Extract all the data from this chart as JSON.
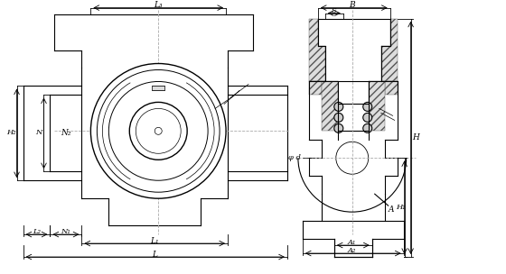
{
  "bg_color": "#ffffff",
  "line_color": "#000000",
  "dim_color": "#000000",
  "hatch_color": "#555555",
  "centerline_color": "#aaaaaa",
  "fig_width": 5.6,
  "fig_height": 3.04,
  "dpi": 100,
  "labels": {
    "L3": "L₃",
    "L1": "L₁",
    "L2": "L₂",
    "L": "L",
    "H2": "H₂",
    "N": "N",
    "N1": "N₁",
    "N2": "N₂",
    "B": "B",
    "S": "S",
    "d": "φ d",
    "H1": "H₁",
    "H": "H",
    "A": "A",
    "A1": "A₁",
    "A2": "A₂"
  }
}
